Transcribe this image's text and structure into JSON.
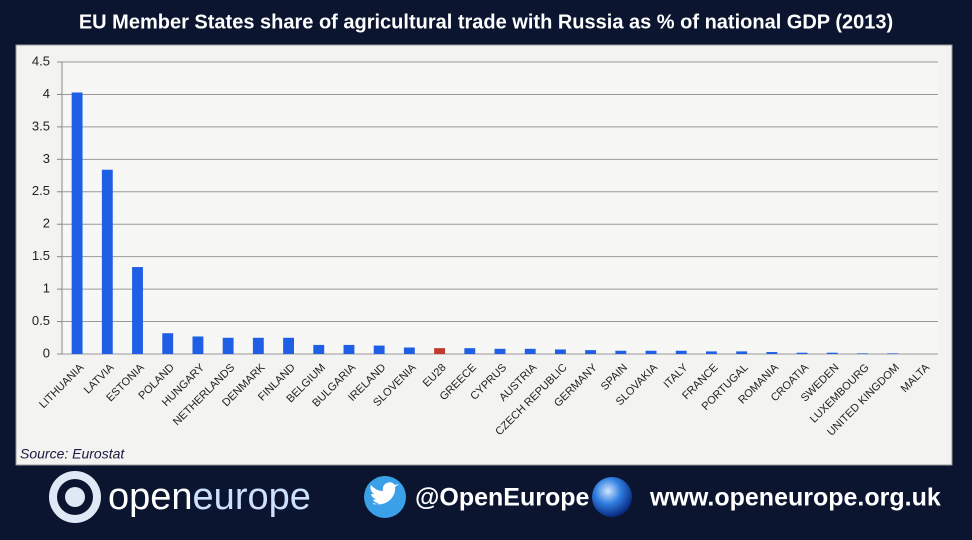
{
  "chart_data": {
    "type": "bar",
    "title": "EU Member States share of agricultural trade with Russia as % of national GDP (2013)",
    "categories": [
      "LITHUANIA",
      "LATVIA",
      "ESTONIA",
      "POLAND",
      "HUNGARY",
      "NETHERLANDS",
      "DENMARK",
      "FINLAND",
      "BELGIUM",
      "BULGARIA",
      "IRELAND",
      "SLOVENIA",
      "EU28",
      "GREECE",
      "CYPRUS",
      "AUSTRIA",
      "CZECH REPUBLIC",
      "GERMANY",
      "SPAIN",
      "SLOVAKIA",
      "ITALY",
      "FRANCE",
      "PORTUGAL",
      "ROMANIA",
      "CROATIA",
      "SWEDEN",
      "LUXEMBOURG",
      "UNITED KINGDOM",
      "MALTA"
    ],
    "values": [
      4.03,
      2.84,
      1.34,
      0.32,
      0.27,
      0.25,
      0.25,
      0.25,
      0.14,
      0.14,
      0.13,
      0.1,
      0.09,
      0.09,
      0.08,
      0.08,
      0.07,
      0.06,
      0.05,
      0.05,
      0.05,
      0.04,
      0.04,
      0.03,
      0.02,
      0.02,
      0.01,
      0.01,
      0
    ],
    "colors": [
      "#1f5fe6",
      "#1f5fe6",
      "#1f5fe6",
      "#1f5fe6",
      "#1f5fe6",
      "#1f5fe6",
      "#1f5fe6",
      "#1f5fe6",
      "#1f5fe6",
      "#1f5fe6",
      "#1f5fe6",
      "#1f5fe6",
      "#c0392b",
      "#1f5fe6",
      "#1f5fe6",
      "#1f5fe6",
      "#1f5fe6",
      "#1f5fe6",
      "#1f5fe6",
      "#1f5fe6",
      "#1f5fe6",
      "#1f5fe6",
      "#1f5fe6",
      "#1f5fe6",
      "#1f5fe6",
      "#1f5fe6",
      "#1f5fe6",
      "#1f5fe6",
      "#1f5fe6"
    ],
    "ylim": [
      0,
      4.5
    ],
    "yticks": [
      0,
      0.5,
      1,
      1.5,
      2,
      2.5,
      3,
      3.5,
      4,
      4.5
    ],
    "grid": true,
    "source": "Source: Eurostat"
  },
  "footer": {
    "brand_open": "open",
    "brand_europe": "europe",
    "twitter": "@OpenEurope",
    "website": "www.openeurope.org.uk"
  }
}
